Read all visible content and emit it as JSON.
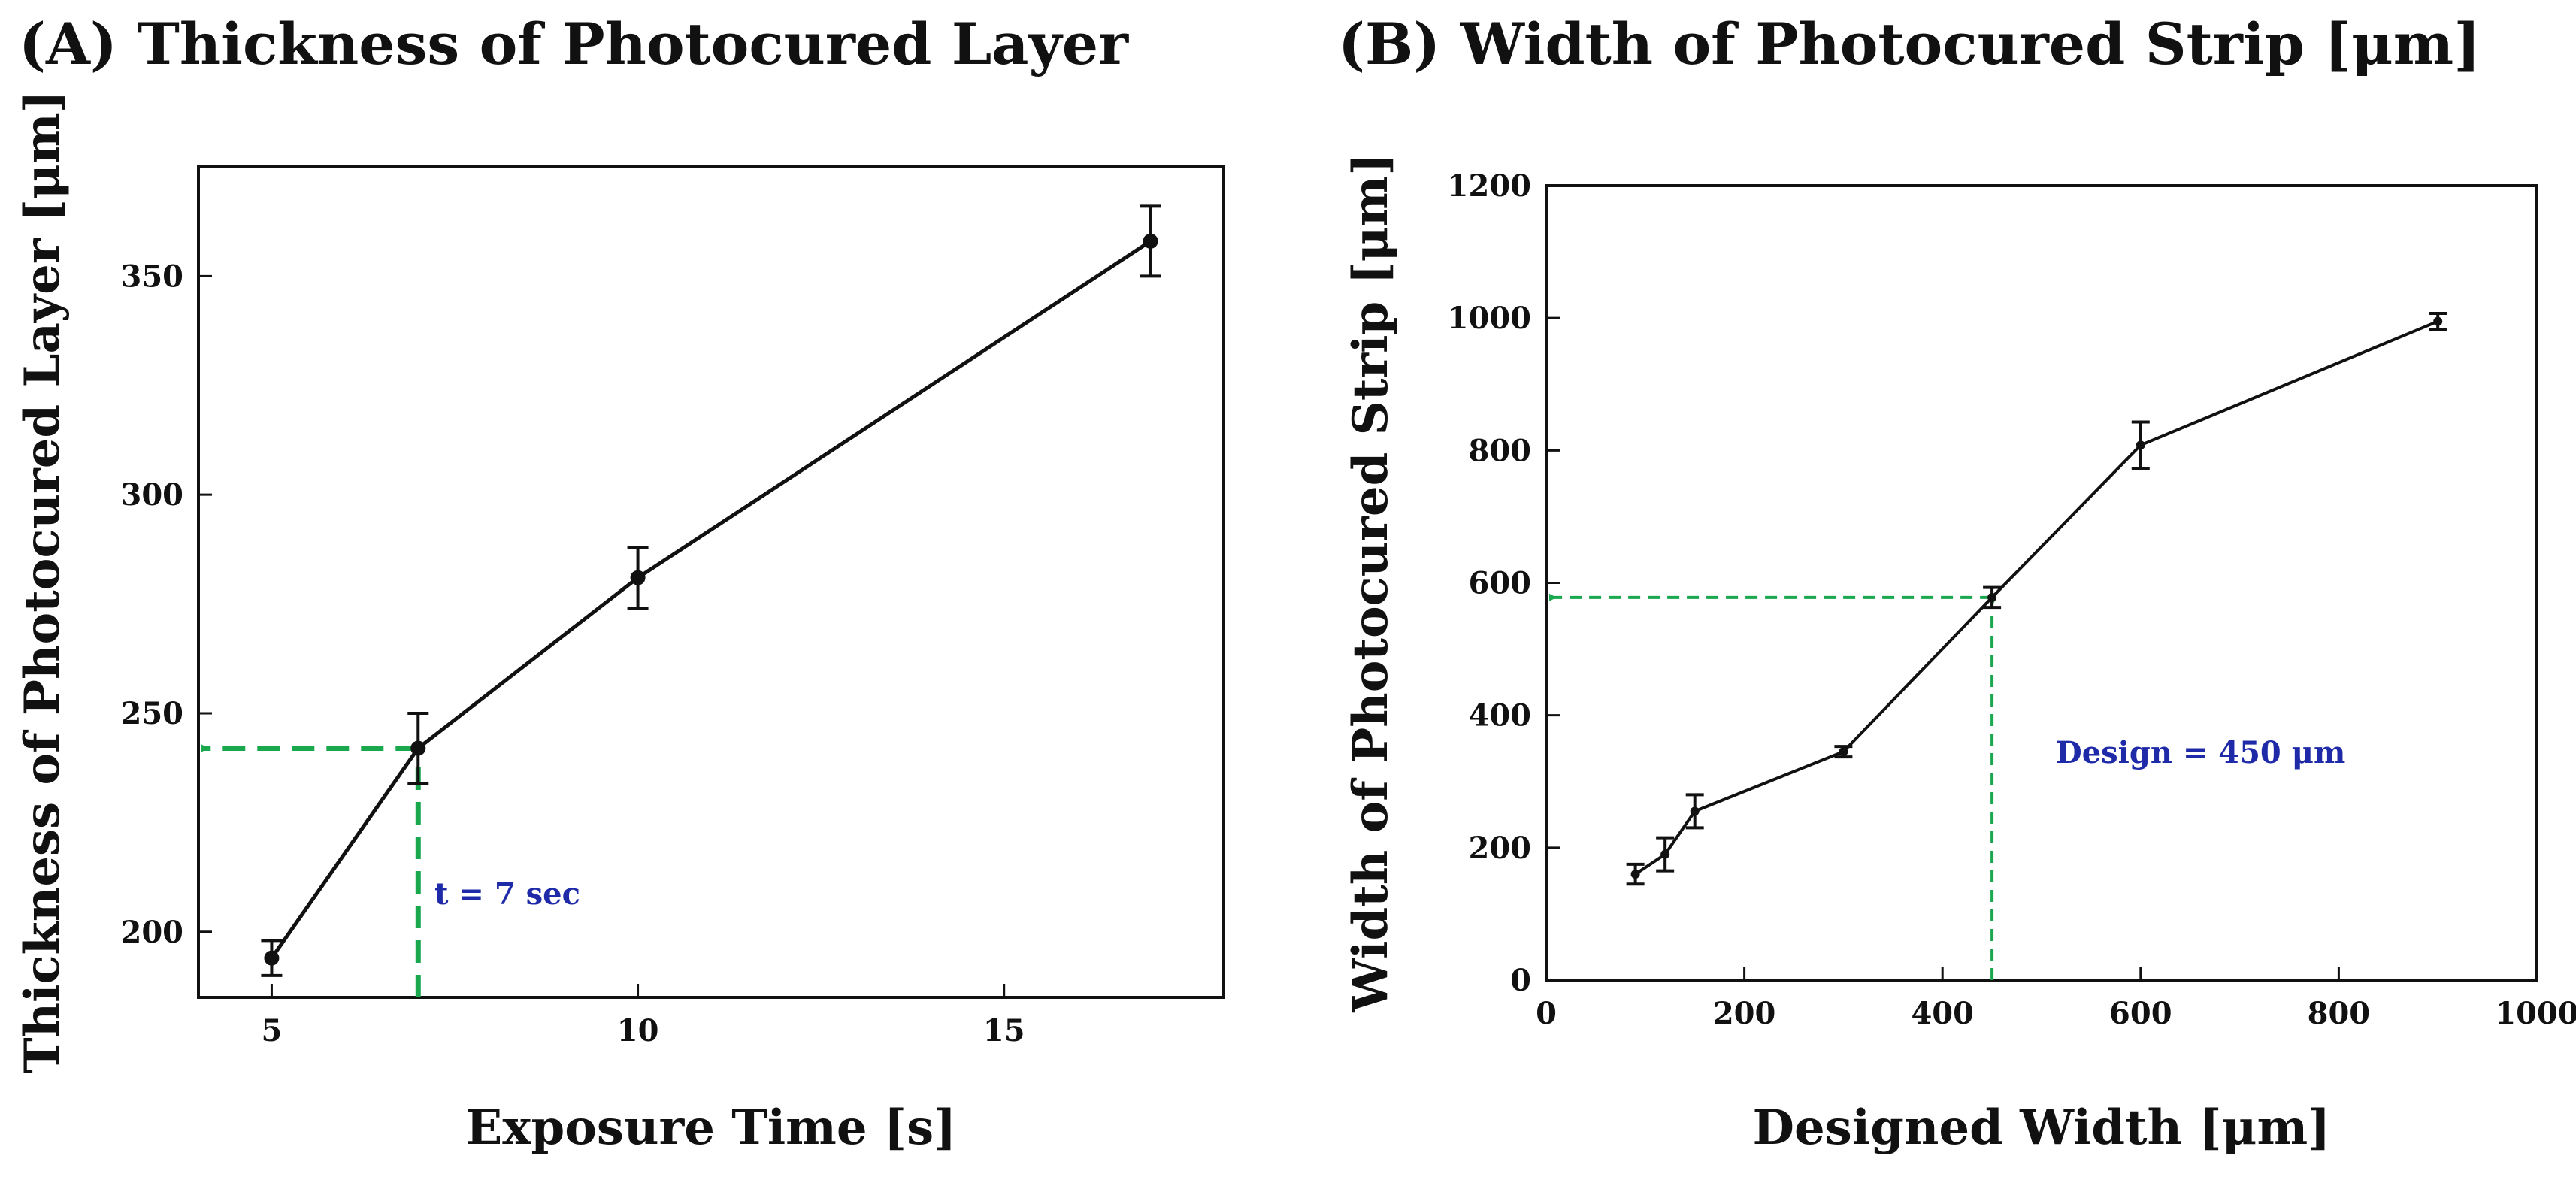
{
  "chart_data": [
    {
      "id": "A",
      "type": "line",
      "title": "(A) Thickness of Photocured Layer",
      "xlabel": "Exposure Time [s]",
      "ylabel": "Thickness of Photocured Layer [μm]",
      "xlim": [
        4,
        18
      ],
      "ylim": [
        185,
        375
      ],
      "xticks": [
        5,
        10,
        15
      ],
      "yticks": [
        200,
        250,
        300,
        350
      ],
      "grid": false,
      "series": [
        {
          "name": "thickness",
          "x": [
            5,
            7,
            10,
            17
          ],
          "y": [
            194,
            242,
            281,
            358
          ],
          "err": [
            4,
            8,
            7,
            8
          ]
        }
      ],
      "guide": {
        "x": 7,
        "y": 242,
        "color": "#1aa84f"
      },
      "annotation": "t = 7 sec"
    },
    {
      "id": "B",
      "type": "line",
      "title": "(B) Width of Photocured Strip [μm]",
      "xlabel": "Designed Width [μm]",
      "ylabel": "Width of Photocured Strip [μm]",
      "xlim": [
        0,
        1000
      ],
      "ylim": [
        0,
        1200
      ],
      "xticks": [
        0,
        200,
        400,
        600,
        800,
        1000
      ],
      "yticks": [
        0,
        200,
        400,
        600,
        800,
        1000,
        1200
      ],
      "grid": false,
      "series": [
        {
          "name": "width",
          "x": [
            90,
            120,
            150,
            300,
            450,
            600,
            900
          ],
          "y": [
            160,
            190,
            255,
            345,
            578,
            808,
            995
          ],
          "err": [
            15,
            25,
            25,
            8,
            15,
            35,
            12
          ]
        }
      ],
      "guide": {
        "x": 450,
        "y": 578,
        "color": "#1aa84f"
      },
      "annotation": "Design = 450 μm"
    }
  ]
}
